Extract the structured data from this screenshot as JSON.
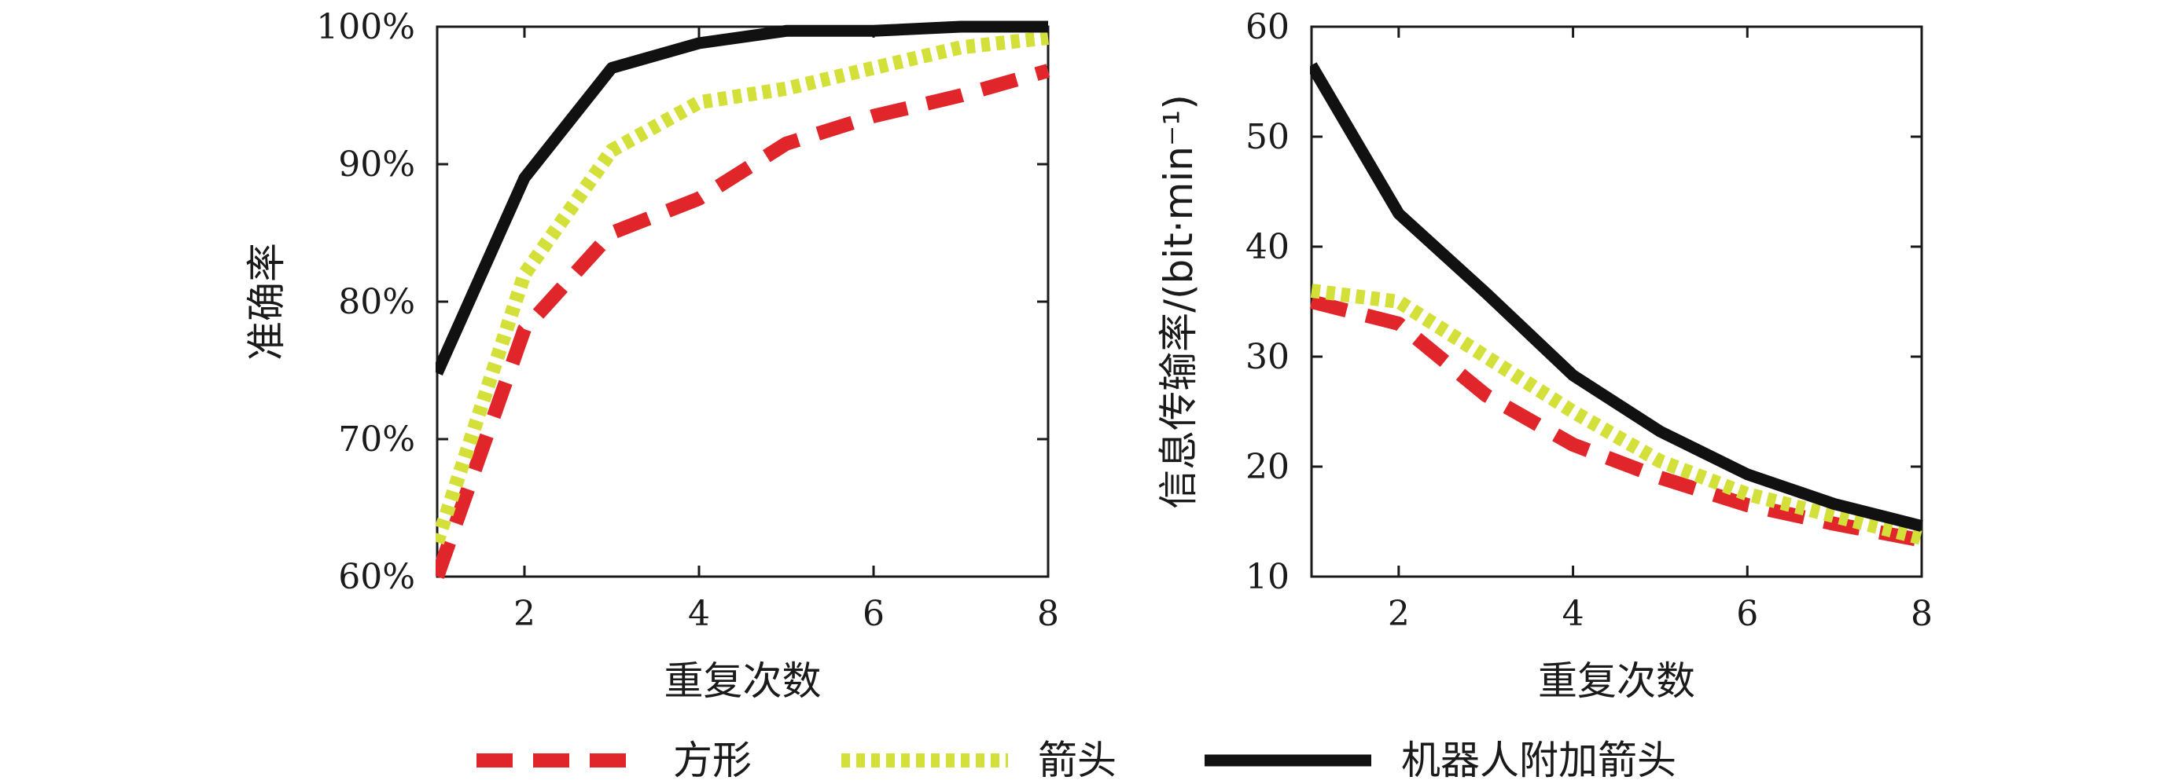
{
  "chart_data": [
    {
      "type": "line",
      "title": "",
      "xlabel": "重复次数",
      "ylabel": "准确率",
      "xlim": [
        1,
        8
      ],
      "ylim": [
        60,
        100
      ],
      "x_ticks": [
        2,
        4,
        6,
        8
      ],
      "y_ticks": [
        60,
        70,
        80,
        90,
        100
      ],
      "y_tick_labels": [
        "60%",
        "70%",
        "80%",
        "90%",
        "100%"
      ],
      "grid": false,
      "x": [
        1,
        2,
        3,
        4,
        5,
        6,
        7,
        8
      ],
      "series": [
        {
          "name": "方形",
          "style": "dashed",
          "color": "#e0262b",
          "values": [
            60,
            78,
            85,
            87.5,
            91.5,
            93.5,
            95,
            96.8
          ]
        },
        {
          "name": "箭头",
          "style": "dotted",
          "color": "#d4e03a",
          "values": [
            62.5,
            82,
            91,
            94.5,
            95.5,
            97,
            98.5,
            99.2
          ]
        },
        {
          "name": "机器人附加箭头",
          "style": "solid",
          "color": "#111111",
          "values": [
            74.8,
            89,
            97,
            98.8,
            99.7,
            99.7,
            100,
            100
          ]
        }
      ]
    },
    {
      "type": "line",
      "title": "",
      "xlabel": "重复次数",
      "ylabel": "信息传输率/(bit·min⁻¹)",
      "xlim": [
        1,
        8
      ],
      "ylim": [
        10,
        60
      ],
      "x_ticks": [
        2,
        4,
        6,
        8
      ],
      "y_ticks": [
        10,
        20,
        30,
        40,
        50,
        60
      ],
      "y_tick_labels": [
        "10",
        "20",
        "30",
        "40",
        "50",
        "60"
      ],
      "grid": false,
      "x": [
        1,
        2,
        3,
        4,
        5,
        6,
        7,
        8
      ],
      "series": [
        {
          "name": "方形",
          "style": "dashed",
          "color": "#e0262b",
          "values": [
            35,
            33,
            26.5,
            22,
            19,
            16.5,
            14.8,
            13.3
          ]
        },
        {
          "name": "箭头",
          "style": "dotted",
          "color": "#d4e03a",
          "values": [
            36,
            35,
            30,
            25,
            20.5,
            17.5,
            15.5,
            13.5
          ]
        },
        {
          "name": "机器人附加箭头",
          "style": "solid",
          "color": "#111111",
          "values": [
            56.5,
            43,
            35.8,
            28.3,
            23.2,
            19.3,
            16.6,
            14.6
          ]
        }
      ]
    }
  ],
  "legend": {
    "placement": "bottom",
    "items": [
      {
        "label": "方形",
        "style": "dashed",
        "color": "#e0262b"
      },
      {
        "label": "箭头",
        "style": "dotted",
        "color": "#d4e03a"
      },
      {
        "label": "机器人附加箭头",
        "style": "solid",
        "color": "#111111"
      }
    ]
  }
}
